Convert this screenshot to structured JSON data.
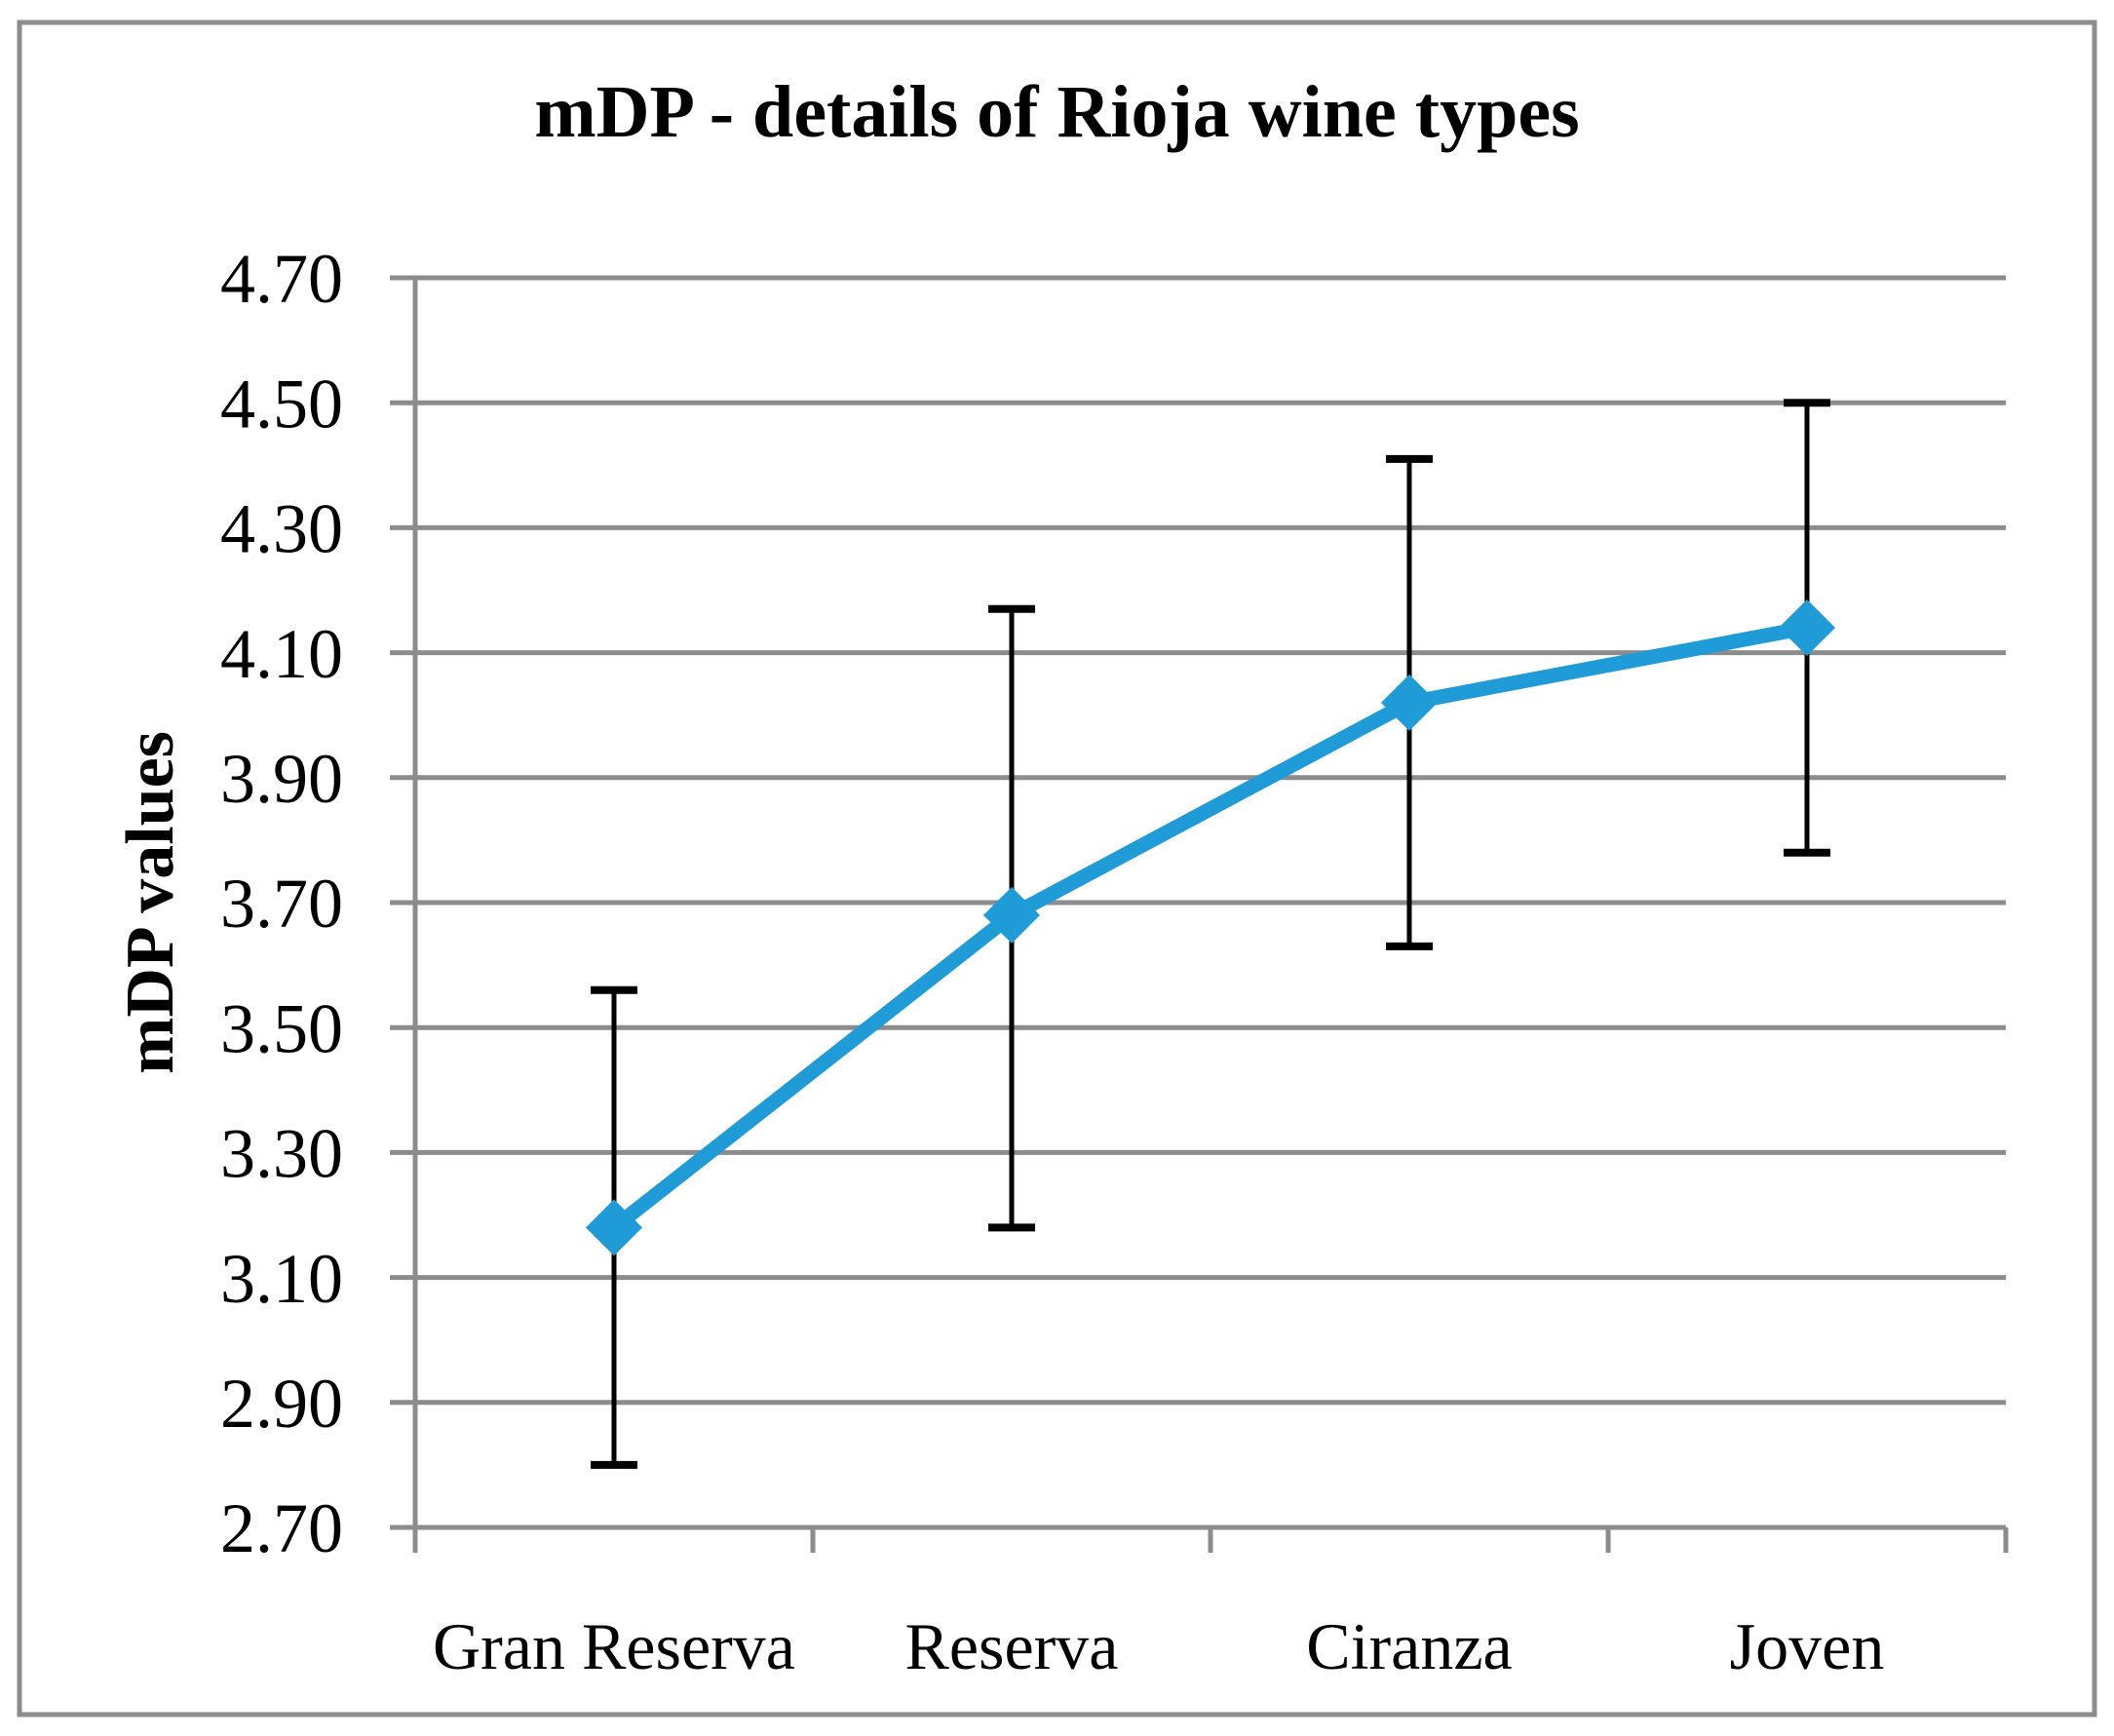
{
  "chart_data": {
    "type": "line",
    "title": "mDP - details of Rioja wine types",
    "xlabel": "",
    "ylabel": "mDP values",
    "categories": [
      "Gran Reserva",
      "Reserva",
      "Ciranza",
      "Joven"
    ],
    "series": [
      {
        "name": "mDP",
        "values": [
          3.18,
          3.68,
          4.02,
          4.14
        ],
        "error_low": [
          2.8,
          3.18,
          3.63,
          3.78
        ],
        "error_high": [
          3.56,
          4.17,
          4.41,
          4.5
        ]
      }
    ],
    "ylim": [
      2.7,
      4.7
    ],
    "ytick_step": 0.2,
    "ytick_labels": [
      "2.70",
      "2.90",
      "3.10",
      "3.30",
      "3.50",
      "3.70",
      "3.90",
      "4.10",
      "4.30",
      "4.50",
      "4.70"
    ],
    "grid": true,
    "legend": "none",
    "marker": "diamond",
    "colors": {
      "line": "#1F9BD8",
      "marker": "#1F9BD8",
      "grid": "#8C8C8C",
      "axis": "#8C8C8C",
      "error_bar": "#000000",
      "text": "#000000",
      "border": "#8C8C8C",
      "background": "#FFFFFF"
    }
  }
}
